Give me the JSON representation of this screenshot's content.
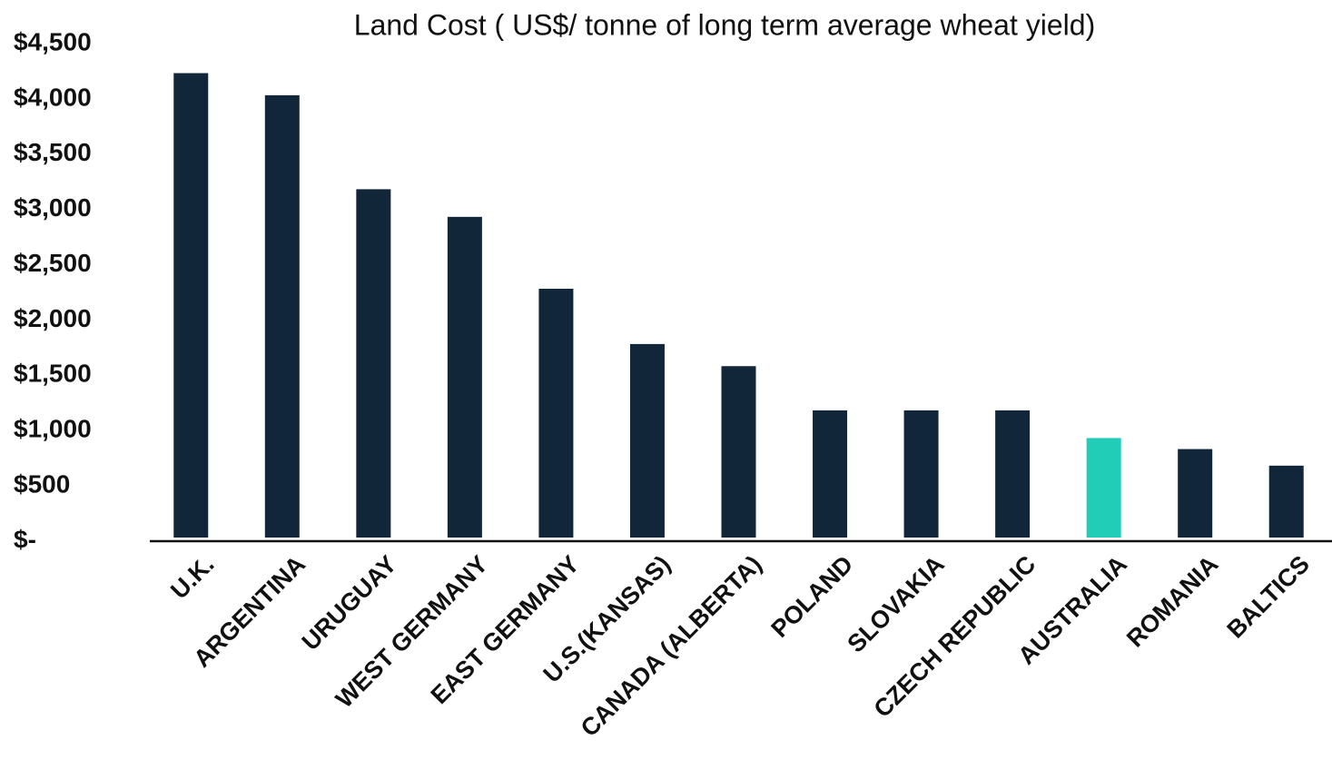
{
  "chart_data": {
    "type": "bar",
    "title": "Land Cost ( US$/ tonne of long term average wheat yield)",
    "categories": [
      "U.K.",
      "ARGENTINA",
      "URUGUAY",
      "WEST GERMANY",
      "EAST GERMANY",
      "U.S.(KANSAS)",
      "CANADA (ALBERTA)",
      "POLAND",
      "SLOVAKIA",
      "CZECH REPUBLIC",
      "AUSTRALIA",
      "ROMANIA",
      "BALTICS"
    ],
    "values": [
      4200,
      4000,
      3150,
      2900,
      2250,
      1750,
      1550,
      1150,
      1150,
      1150,
      900,
      800,
      650
    ],
    "colors": [
      "#12263a",
      "#12263a",
      "#12263a",
      "#12263a",
      "#12263a",
      "#12263a",
      "#12263a",
      "#12263a",
      "#12263a",
      "#12263a",
      "#22cdb8",
      "#12263a",
      "#12263a"
    ],
    "ylim": [
      0,
      4500
    ],
    "yticks": [
      {
        "value": 0,
        "label": "$-"
      },
      {
        "value": 500,
        "label": "$500"
      },
      {
        "value": 1000,
        "label": "$1,000"
      },
      {
        "value": 1500,
        "label": "$1,500"
      },
      {
        "value": 2000,
        "label": "$2,000"
      },
      {
        "value": 2500,
        "label": "$2,500"
      },
      {
        "value": 3000,
        "label": "$3,000"
      },
      {
        "value": 3500,
        "label": "$3,500"
      },
      {
        "value": 4000,
        "label": "$4,000"
      },
      {
        "value": 4500,
        "label": "$4,500"
      }
    ],
    "grid": false
  }
}
